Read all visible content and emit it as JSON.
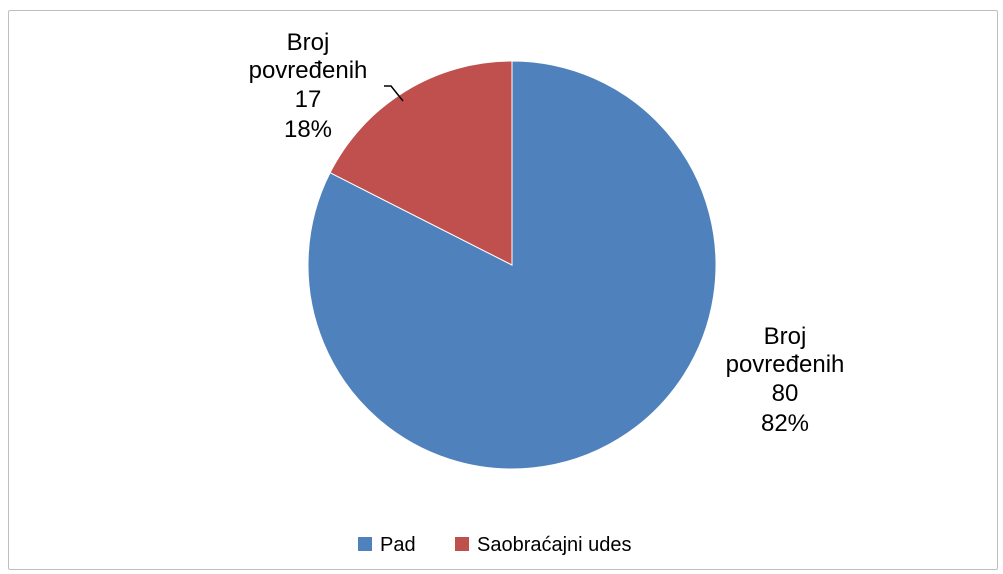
{
  "chart_data": {
    "type": "pie",
    "title": "",
    "categories": [
      "Pad",
      "Saobraćajni udes"
    ],
    "values": [
      80,
      17
    ],
    "percentages": [
      "82%",
      "18%"
    ],
    "colors": [
      "#4f81bd",
      "#c0504d"
    ],
    "data_labels": [
      {
        "name": "Broj povređenih",
        "value": "80",
        "percent": "82%"
      },
      {
        "name": "Broj povređenih",
        "value": "17",
        "percent": "18%"
      }
    ],
    "legend": {
      "placement": "bottom",
      "entries": [
        "Pad",
        "Saobraćajni udes"
      ]
    }
  }
}
